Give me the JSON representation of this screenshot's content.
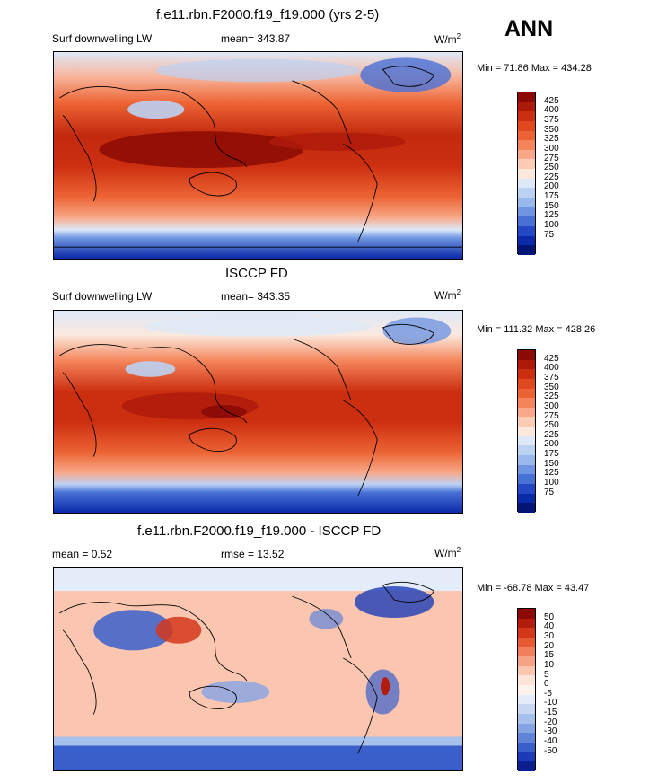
{
  "season_label": "ANN",
  "units_base": "W/m",
  "units_exp": "2",
  "panels": [
    {
      "title": "f.e11.rbn.F2000.f19_f19.000 (yrs 2-5)",
      "left_label": "Surf downwelling LW",
      "center_label": "mean= 343.87",
      "minmax": "Min =  71.86 Max = 434.28",
      "legend_labels": [
        "425",
        "400",
        "375",
        "350",
        "325",
        "300",
        "275",
        "250",
        "225",
        "200",
        "175",
        "150",
        "125",
        "100",
        "75"
      ]
    },
    {
      "title": "ISCCP FD",
      "left_label": "Surf downwelling LW",
      "center_label": "mean= 343.35",
      "minmax": "Min = 111.32 Max = 428.26",
      "legend_labels": [
        "425",
        "400",
        "375",
        "350",
        "325",
        "300",
        "275",
        "250",
        "225",
        "200",
        "175",
        "150",
        "125",
        "100",
        "75"
      ]
    },
    {
      "title": "f.e11.rbn.F2000.f19_f19.000 - ISCCP FD",
      "left_label": "mean =   0.52",
      "center_label": "rmse =  13.52",
      "minmax": "Min = -68.78 Max =  43.47",
      "legend_labels": [
        "50",
        "40",
        "30",
        "20",
        "15",
        "10",
        "5",
        "0",
        "-5",
        "-10",
        "-15",
        "-20",
        "-30",
        "-40",
        "-50"
      ]
    }
  ],
  "colors": {
    "abs_scale": [
      "#8b0a05",
      "#ae1a0a",
      "#cc2f10",
      "#e0481d",
      "#ec6333",
      "#f4845a",
      "#f8a888",
      "#fbcbb3",
      "#fbe9de",
      "#dde9f8",
      "#bcd2f3",
      "#99b8ec",
      "#7096e1",
      "#4871d6",
      "#2448c4",
      "#0a2aa8",
      "#031574"
    ],
    "diff_scale": [
      "#8b0a05",
      "#b31c0c",
      "#d3371a",
      "#e65a33",
      "#f17f5c",
      "#f6a385",
      "#fac6b0",
      "#fde4d8",
      "#fdf3ee",
      "#e3ecf8",
      "#c7d8f3",
      "#a7c0ec",
      "#84a4e3",
      "#5f84d8",
      "#3a5fcb",
      "#1d3bb6",
      "#0b1f90"
    ],
    "ocean_tropic": "#b1200d",
    "coast": "#000000"
  }
}
